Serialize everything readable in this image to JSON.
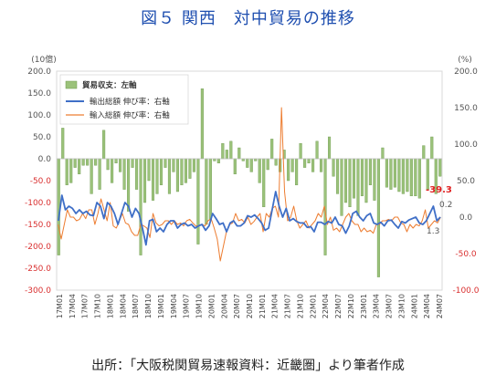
{
  "title": "図５ 関西　対中貿易の推移",
  "source": "出所：「大阪税関貿易速報資料：近畿圏」より筆者作成",
  "chart_data": {
    "type": "bar+line",
    "left_unit": "(10億)",
    "right_unit": "(%)",
    "y_left": [
      -300,
      200
    ],
    "y_right": [
      -100,
      200
    ],
    "left_ticks": [
      "200.0",
      "150.0",
      "100.0",
      "50.0",
      "0.0",
      "-50.0",
      "-100.0",
      "-150.0",
      "-200.0",
      "-250.0",
      "-300.0"
    ],
    "right_ticks": [
      "200.0",
      "150.0",
      "100.0",
      "50.0",
      "0.0",
      "-50.0",
      "-100.0"
    ],
    "x_tick_labels": [
      "17M01",
      "17M04",
      "17M07",
      "17M10",
      "18M01",
      "18M04",
      "18M07",
      "18M10",
      "19M01",
      "19M04",
      "19M07",
      "19M10",
      "20M01",
      "20M04",
      "20M07",
      "20M10",
      "21M01",
      "21M04",
      "21M07",
      "21M10",
      "22M01",
      "22M04",
      "22M07",
      "22M10",
      "23M01",
      "23M04",
      "23M07",
      "23M10",
      "24M01",
      "24M04",
      "24M07"
    ],
    "series": [
      {
        "name": "貿易収支：左軸",
        "kind": "bar",
        "axis": "left",
        "color": "#9bc27a",
        "values": [
          -220,
          70,
          -60,
          -55,
          -20,
          -35,
          -15,
          -15,
          -80,
          -15,
          -70,
          65,
          -25,
          -55,
          -10,
          -30,
          -70,
          -120,
          -20,
          -70,
          -220,
          -100,
          -50,
          -95,
          -80,
          -60,
          -20,
          -80,
          -30,
          -75,
          -60,
          -55,
          -45,
          -30,
          -195,
          160,
          -150,
          -140,
          -5,
          -10,
          35,
          20,
          40,
          -35,
          25,
          -5,
          -20,
          -30,
          -5,
          -55,
          -110,
          -25,
          45,
          -15,
          -30,
          20,
          -50,
          -30,
          -60,
          35,
          -20,
          -10,
          -30,
          40,
          -30,
          -220,
          50,
          -40,
          -80,
          -130,
          -100,
          -110,
          -90,
          -130,
          -85,
          -100,
          -60,
          -95,
          -270,
          25,
          -65,
          -70,
          -65,
          -75,
          -80,
          -75,
          -85,
          -85,
          -90,
          30,
          -70,
          50,
          -80,
          -40
        ]
      },
      {
        "name": "輸出総額 伸び率：右軸",
        "kind": "line",
        "axis": "right",
        "color": "#3f6fc7",
        "values": [
          -5,
          30,
          10,
          15,
          12,
          5,
          10,
          5,
          8,
          3,
          2,
          20,
          15,
          -2,
          20,
          15,
          5,
          -10,
          5,
          20,
          15,
          0,
          12,
          5,
          -15,
          -38,
          -5,
          -3,
          -20,
          -15,
          -20,
          -10,
          -5,
          -5,
          -15,
          -10,
          -8,
          -12,
          -10,
          -15,
          -12,
          -10,
          -18,
          -12,
          5,
          -2,
          -10,
          -8,
          -20,
          -8,
          -5,
          -12,
          -12,
          -8,
          2,
          0,
          3,
          -2,
          -8,
          -18,
          -15,
          10,
          35,
          15,
          0,
          12,
          -5,
          -2,
          -6,
          -8,
          -8,
          -14,
          -13,
          -20,
          -7,
          -7,
          -10,
          -6,
          -8,
          0,
          -10,
          -12,
          -22,
          -12,
          5,
          8,
          0,
          -5,
          2,
          5,
          -8,
          -10,
          -7,
          -12,
          -5,
          -4,
          -10,
          -15,
          -6,
          -8,
          -4,
          -2,
          0,
          -8,
          -10,
          -5,
          5,
          15,
          -5,
          0
        ]
      },
      {
        "name": "輸入総額 伸び率：右軸",
        "kind": "line",
        "axis": "right",
        "color": "#ed7d31",
        "values": [
          -10,
          -30,
          -10,
          10,
          0,
          0,
          -5,
          -3,
          5,
          -2,
          10,
          10,
          -10,
          5,
          25,
          10,
          -5,
          20,
          -12,
          -15,
          -5,
          5,
          -8,
          -10,
          -20,
          -25,
          -25,
          -10,
          -12,
          -15,
          -28,
          5,
          -8,
          -12,
          -10,
          -5,
          -5,
          -10,
          -5,
          -10,
          -8,
          -12,
          -5,
          -3,
          -8,
          -12,
          -12,
          -10,
          -12,
          -5,
          -2,
          -15,
          -30,
          -60,
          -40,
          -20,
          -10,
          -8,
          5,
          -5,
          -3,
          -8,
          0,
          -10,
          -6,
          0,
          5,
          -20,
          5,
          0,
          12,
          15,
          0,
          150,
          35,
          -5,
          0,
          15,
          -5,
          -15,
          -10,
          -5,
          -15,
          -10,
          -5,
          5,
          0,
          15,
          -10,
          0,
          -18,
          -15,
          -20,
          -10,
          0,
          5,
          -5,
          -10,
          -10,
          -20,
          -15,
          -20,
          -18,
          -22,
          -10,
          -10,
          -5,
          -5,
          -3,
          -5,
          0,
          0,
          -8,
          -10,
          -20,
          -10,
          -15,
          -10,
          -12,
          -5,
          10,
          -15,
          -10,
          -5,
          -8,
          0
        ]
      }
    ],
    "annotations": [
      {
        "text": "-39.3",
        "color": "#e02020"
      },
      {
        "text": "0.2",
        "color": "#555555"
      },
      {
        "text": "1.3",
        "color": "#555555"
      }
    ],
    "legend_position": "top-left",
    "grid": false
  }
}
